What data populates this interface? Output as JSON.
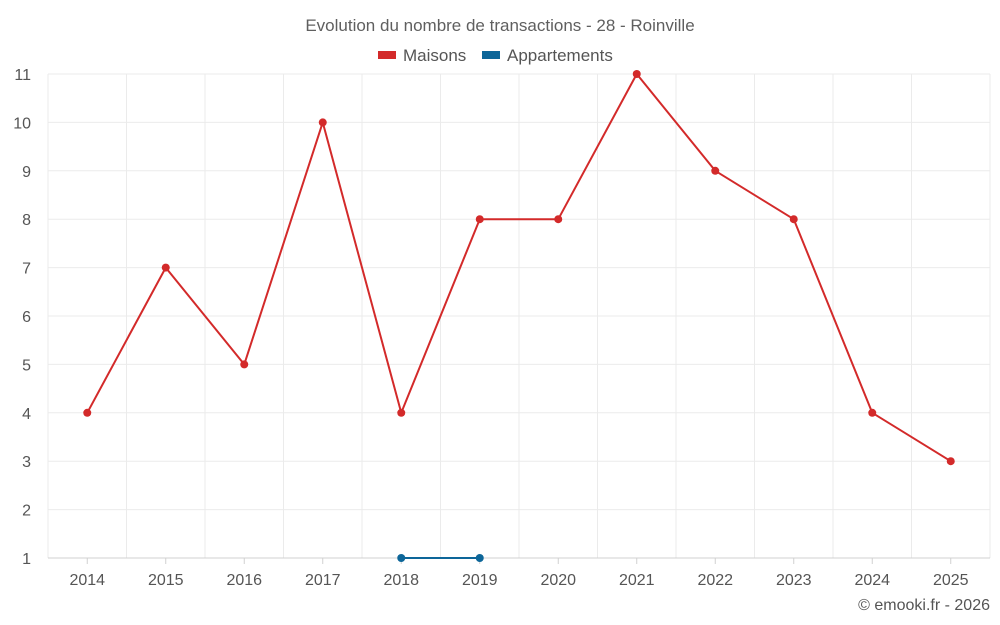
{
  "chart_data": {
    "type": "line",
    "title": "Evolution du nombre de transactions - 28 - Roinville",
    "categories": [
      "2014",
      "2015",
      "2016",
      "2017",
      "2018",
      "2019",
      "2020",
      "2021",
      "2022",
      "2023",
      "2024",
      "2025"
    ],
    "series": [
      {
        "name": "Maisons",
        "color": "#d32a2a",
        "values": [
          4,
          7,
          5,
          10,
          4,
          8,
          8,
          11,
          9,
          8,
          4,
          3
        ]
      },
      {
        "name": "Appartements",
        "color": "#0d6699",
        "values": [
          null,
          null,
          null,
          null,
          1,
          1,
          null,
          null,
          null,
          null,
          null,
          null
        ]
      }
    ],
    "ylim": [
      1,
      11
    ],
    "yticks": [
      1,
      2,
      3,
      4,
      5,
      6,
      7,
      8,
      9,
      10,
      11
    ],
    "grid": true,
    "legend": "top-center",
    "credit": "© emooki.fr - 2026"
  }
}
